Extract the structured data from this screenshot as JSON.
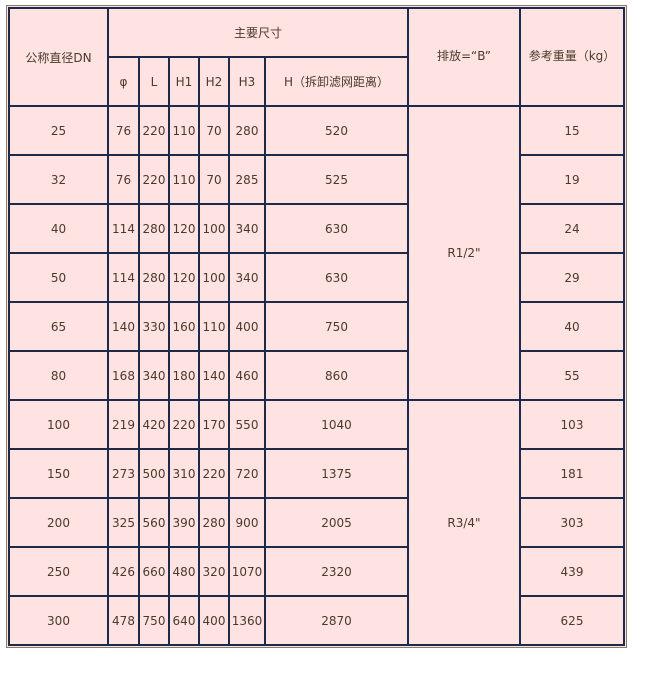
{
  "header": {
    "dn": "公称直径DN",
    "main": "主要尺寸",
    "phi": "φ",
    "L": "L",
    "H1": "H1",
    "H2": "H2",
    "H3": "H3",
    "H": "H（拆卸滤网距离）",
    "drain": "排放=“B”",
    "weight": "参考重量（kg）"
  },
  "rows": [
    [
      "25",
      "76",
      "220",
      "110",
      "70",
      "280",
      "520",
      "15"
    ],
    [
      "32",
      "76",
      "220",
      "110",
      "70",
      "285",
      "525",
      "19"
    ],
    [
      "40",
      "114",
      "280",
      "120",
      "100",
      "340",
      "630",
      "24"
    ],
    [
      "50",
      "114",
      "280",
      "120",
      "100",
      "340",
      "630",
      "29"
    ],
    [
      "65",
      "140",
      "330",
      "160",
      "110",
      "400",
      "750",
      "40"
    ],
    [
      "80",
      "168",
      "340",
      "180",
      "140",
      "460",
      "860",
      "55"
    ],
    [
      "100",
      "219",
      "420",
      "220",
      "170",
      "550",
      "1040",
      "103"
    ],
    [
      "150",
      "273",
      "500",
      "310",
      "220",
      "720",
      "1375",
      "181"
    ],
    [
      "200",
      "325",
      "560",
      "390",
      "280",
      "900",
      "2005",
      "303"
    ],
    [
      "250",
      "426",
      "660",
      "480",
      "320",
      "1070",
      "2320",
      "439"
    ],
    [
      "300",
      "478",
      "750",
      "640",
      "400",
      "1360",
      "2870",
      "625"
    ]
  ],
  "drain_groups": [
    "R1/2\"",
    "R3/4\""
  ]
}
